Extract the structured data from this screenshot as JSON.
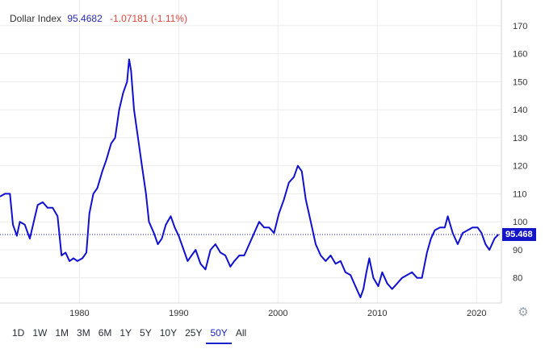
{
  "legend": {
    "name": "Dollar Index",
    "price": "95.4682",
    "change": "-1.07181 (-1.11%)"
  },
  "price_tag": "95.468",
  "icons": {
    "settings": "gear-icon"
  },
  "colors": {
    "line": "#1010d0",
    "price_tag_bg": "#1414c8",
    "change_negative": "#e0443c",
    "price_text": "#2a2ab0",
    "grid": "#ececec",
    "axis_text": "#333333",
    "active_range": "#1a24c9"
  },
  "range_buttons": [
    {
      "label": "1D",
      "active": false
    },
    {
      "label": "1W",
      "active": false
    },
    {
      "label": "1M",
      "active": false
    },
    {
      "label": "3M",
      "active": false
    },
    {
      "label": "6M",
      "active": false
    },
    {
      "label": "1Y",
      "active": false
    },
    {
      "label": "5Y",
      "active": false
    },
    {
      "label": "10Y",
      "active": false
    },
    {
      "label": "25Y",
      "active": false
    },
    {
      "label": "50Y",
      "active": true
    },
    {
      "label": "All",
      "active": false
    }
  ],
  "chart_data": {
    "type": "line",
    "title": "",
    "xlabel": "",
    "ylabel": "",
    "xlim": [
      1972,
      2022.5
    ],
    "ylim": [
      71,
      174
    ],
    "grid": true,
    "y_axis_side": "right",
    "x_ticks": [
      1980,
      1990,
      2000,
      2010,
      2020
    ],
    "x_tick_labels": [
      "1980",
      "1990",
      "2000",
      "2010",
      "2020"
    ],
    "y_ticks": [
      80,
      90,
      100,
      110,
      120,
      130,
      140,
      150,
      160,
      170
    ],
    "y_tick_labels": [
      "80",
      "90",
      "100",
      "110",
      "120",
      "130",
      "140",
      "150",
      "160",
      "170"
    ],
    "reference_line": 95.468,
    "series": [
      {
        "x": [
          1972.0,
          1972.5,
          1973.0,
          1973.3,
          1973.7,
          1974.0,
          1974.5,
          1975.0,
          1975.4,
          1975.8,
          1976.3,
          1976.8,
          1977.3,
          1977.8,
          1978.2,
          1978.6,
          1979.0,
          1979.4,
          1979.8,
          1980.3,
          1980.7,
          1981.0,
          1981.4,
          1981.8,
          1982.3,
          1982.7,
          1983.2,
          1983.6,
          1984.0,
          1984.4,
          1984.8,
          1985.0,
          1985.2,
          1985.5,
          1985.9,
          1986.3,
          1986.7,
          1987.0,
          1987.5,
          1987.9,
          1988.3,
          1988.7,
          1989.2,
          1989.6,
          1990.0,
          1990.5,
          1990.9,
          1991.3,
          1991.7,
          1992.2,
          1992.7,
          1993.2,
          1993.7,
          1994.2,
          1994.7,
          1995.2,
          1995.6,
          1996.1,
          1996.6,
          1997.1,
          1997.6,
          1998.1,
          1998.6,
          1999.1,
          1999.6,
          2000.1,
          2000.6,
          2001.1,
          2001.6,
          2002.0,
          2002.4,
          2002.8,
          2003.3,
          2003.8,
          2004.3,
          2004.8,
          2005.3,
          2005.8,
          2006.3,
          2006.8,
          2007.3,
          2007.8,
          2008.3,
          2008.6,
          2008.9,
          2009.2,
          2009.6,
          2010.1,
          2010.5,
          2011.0,
          2011.5,
          2012.0,
          2012.5,
          2013.0,
          2013.5,
          2014.0,
          2014.5,
          2015.0,
          2015.4,
          2015.8,
          2016.3,
          2016.8,
          2017.1,
          2017.6,
          2018.1,
          2018.6,
          2019.1,
          2019.6,
          2020.1,
          2020.5,
          2020.9,
          2021.3,
          2021.8,
          2022.2
        ],
        "y": [
          109,
          110,
          110,
          99,
          95,
          100,
          99,
          94,
          100,
          106,
          107,
          105,
          105,
          102,
          88,
          89,
          86,
          87,
          86,
          87,
          89,
          103,
          110,
          112,
          118,
          122,
          128,
          130,
          140,
          146,
          150,
          158,
          154,
          140,
          130,
          120,
          110,
          100,
          96,
          92,
          94,
          99,
          102,
          98,
          95,
          90,
          86,
          88,
          90,
          85,
          83,
          90,
          92,
          89,
          88,
          84,
          86,
          88,
          88,
          92,
          96,
          100,
          98,
          98,
          96,
          103,
          108,
          114,
          116,
          120,
          118,
          108,
          100,
          92,
          88,
          86,
          88,
          85,
          86,
          82,
          81,
          77,
          73,
          76,
          82,
          87,
          80,
          77,
          82,
          78,
          76,
          78,
          80,
          81,
          82,
          80,
          80,
          89,
          94,
          97,
          98,
          98,
          102,
          96,
          92,
          96,
          97,
          98,
          98,
          96,
          92,
          90,
          94,
          95.47
        ]
      }
    ]
  }
}
